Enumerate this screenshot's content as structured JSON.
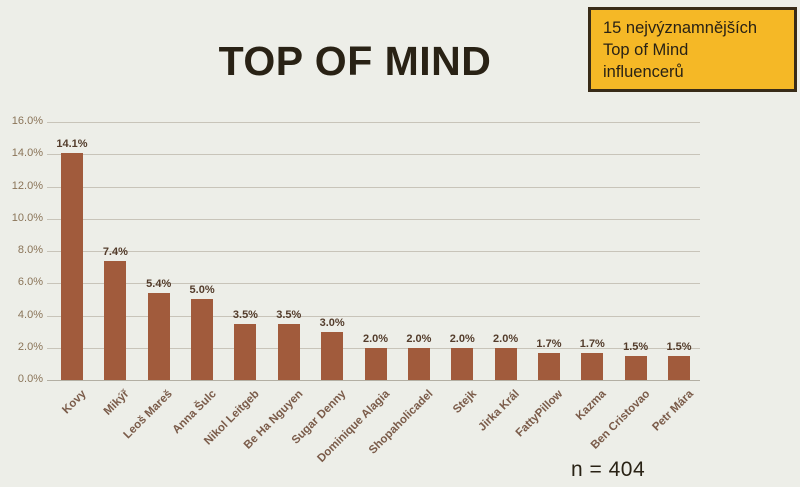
{
  "page": {
    "title": "TOP OF MIND",
    "badge_text": "15 nejvýznamnějších\nTop of Mind\ninfluencerů",
    "footnote": "n = 404",
    "colors": {
      "background": "#edeee8",
      "bar": "#a15b3c",
      "badge_fill": "#f5b826",
      "badge_border": "#382b18",
      "title_text": "#292215",
      "gridline": "#c8c4b9",
      "axis_label": "#8a7458",
      "category_label": "#7a5b49",
      "value_label": "#533c2b"
    }
  },
  "chart_data": {
    "type": "bar",
    "title": "TOP OF MIND",
    "xlabel": "",
    "ylabel": "",
    "categories": [
      "Kovy",
      "Mikýř",
      "Leoš Mareš",
      "Anna Šulc",
      "Nikol Leitgeb",
      "Be Ha Nguyen",
      "Sugar Denny",
      "Dominique Alagia",
      "Shopaholicadel",
      "Stejk",
      "Jirka Král",
      "FattyPillow",
      "Kazma",
      "Ben Cristovao",
      "Petr Mára"
    ],
    "values": [
      14.1,
      7.4,
      5.4,
      5.0,
      3.5,
      3.5,
      3.0,
      2.0,
      2.0,
      2.0,
      2.0,
      1.7,
      1.7,
      1.5,
      1.5
    ],
    "data_labels": [
      "14.1%",
      "7.4%",
      "5.4%",
      "5.0%",
      "3.5%",
      "3.5%",
      "3.0%",
      "2.0%",
      "2.0%",
      "2.0%",
      "2.0%",
      "1.7%",
      "1.7%",
      "1.5%",
      "1.5%"
    ],
    "y_tick_values": [
      0,
      2,
      4,
      6,
      8,
      10,
      12,
      14,
      16
    ],
    "y_tick_labels": [
      "0.0%",
      "2.0%",
      "4.0%",
      "6.0%",
      "8.0%",
      "10.0%",
      "12.0%",
      "14.0%",
      "16.0%"
    ],
    "ylim": [
      0,
      16
    ],
    "grid": true,
    "legend": false,
    "annotation": "n = 404"
  }
}
